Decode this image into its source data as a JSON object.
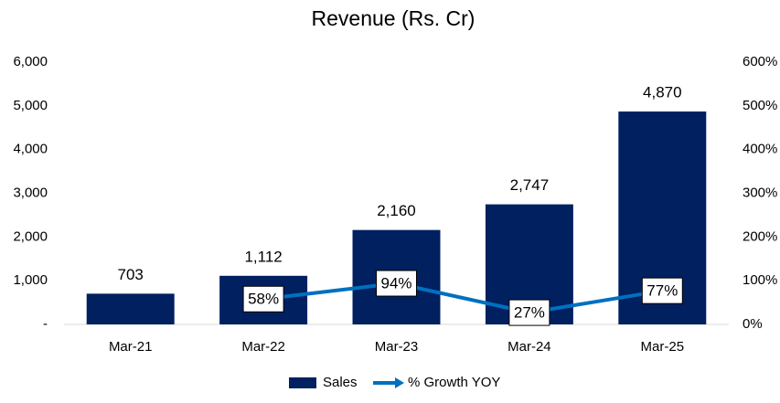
{
  "chart_data": {
    "type": "bar",
    "title": "Revenue (Rs. Cr)",
    "categories": [
      "Mar-21",
      "Mar-22",
      "Mar-23",
      "Mar-24",
      "Mar-25"
    ],
    "series": [
      {
        "name": "Sales",
        "type": "bar",
        "color": "#002060",
        "values": [
          703,
          1112,
          2160,
          2747,
          4870
        ],
        "value_labels": [
          "703",
          "1,112",
          "2,160",
          "2,747",
          "4,870"
        ]
      },
      {
        "name": "% Growth YOY",
        "type": "line",
        "axis": "y2",
        "color": "#0070c0",
        "values": [
          null,
          58,
          94,
          27,
          77
        ],
        "value_labels": [
          null,
          "58%",
          "94%",
          "27%",
          "77%"
        ]
      }
    ],
    "ylim": [
      0,
      6000
    ],
    "yticks": [
      {
        "value": 0,
        "label": "-"
      },
      {
        "value": 1000,
        "label": "1,000"
      },
      {
        "value": 2000,
        "label": "2,000"
      },
      {
        "value": 3000,
        "label": "3,000"
      },
      {
        "value": 4000,
        "label": "4,000"
      },
      {
        "value": 5000,
        "label": "5,000"
      },
      {
        "value": 6000,
        "label": "6,000"
      }
    ],
    "y2lim": [
      0,
      600
    ],
    "y2ticks": [
      {
        "value": 0,
        "label": "0%"
      },
      {
        "value": 100,
        "label": "100%"
      },
      {
        "value": 200,
        "label": "200%"
      },
      {
        "value": 300,
        "label": "300%"
      },
      {
        "value": 400,
        "label": "400%"
      },
      {
        "value": 500,
        "label": "500%"
      },
      {
        "value": 600,
        "label": "600%"
      }
    ],
    "grid": false,
    "legend": "bottom"
  }
}
